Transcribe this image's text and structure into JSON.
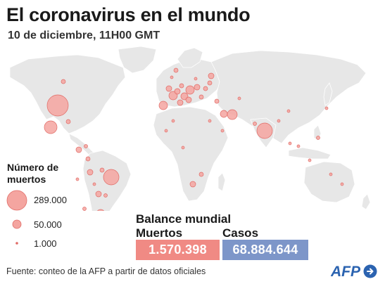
{
  "header": {
    "title": "El coronavirus en el mundo",
    "subtitle": "10 de diciembre, 11H00 GMT"
  },
  "legend": {
    "title": "Número de muertos",
    "items": [
      {
        "label": "289.000",
        "value": 289000
      },
      {
        "label": "50.000",
        "value": 50000
      },
      {
        "label": "1.000",
        "value": 1000
      }
    ]
  },
  "stats": {
    "heading": "Balance mundial",
    "deaths_label": "Muertos",
    "deaths_value": "1.570.398",
    "cases_label": "Casos",
    "cases_value": "68.884.644"
  },
  "footer": {
    "source": "Fuente: conteo de la AFP a partir de datos oficiales",
    "logo_text": "AFP"
  },
  "colors": {
    "bubble_fill": "#f4a5a0",
    "bubble_stroke": "#e06b66",
    "deaths_box": "#f08a84",
    "cases_box": "#7d96c9",
    "land": "#e7e7e7",
    "logo_blue": "#2b63b0"
  }
}
